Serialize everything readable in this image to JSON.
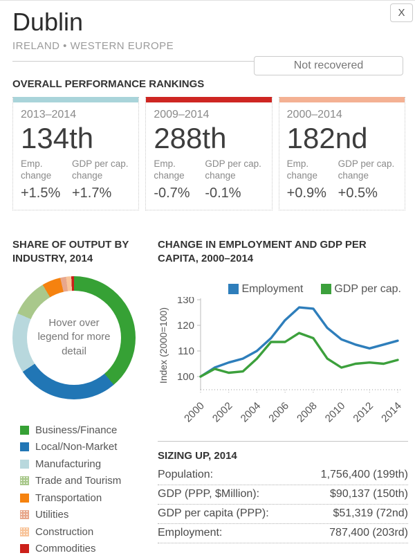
{
  "header": {
    "close_label": "X",
    "title": "Dublin",
    "subtitle": "IRELAND • WESTERN EUROPE",
    "status_label": "Not recovered"
  },
  "rankings": {
    "heading": "OVERALL PERFORMANCE RANKINGS",
    "col_labels": [
      "Emp. change",
      "GDP per cap. change"
    ],
    "cards": [
      {
        "period": "2013–2014",
        "rank": "134th",
        "bar_color": "#a9d4da",
        "emp_value": "+1.5%",
        "gdp_value": "+1.7%"
      },
      {
        "period": "2009–2014",
        "rank": "288th",
        "bar_color": "#ce2622",
        "emp_value": "-0.7%",
        "gdp_value": "-0.1%"
      },
      {
        "period": "2000–2014",
        "rank": "182nd",
        "bar_color": "#f4b193",
        "emp_value": "+0.9%",
        "gdp_value": "+0.5%"
      }
    ]
  },
  "chart_data": [
    {
      "type": "pie",
      "title": "SHARE OF OUTPUT BY INDUSTRY, 2014",
      "donut": true,
      "center_note": "Hover over legend for more detail",
      "legend_position": "bottom-left",
      "slices": [
        {
          "label": "Business/Finance",
          "value": 38.8,
          "color": "#36a135",
          "patterned": false
        },
        {
          "label": "Local/Non-Market",
          "value": 26.9,
          "color": "#2176b5",
          "patterned": false
        },
        {
          "label": "Manufacturing",
          "value": 15.8,
          "color": "#b8d8dd",
          "patterned": false
        },
        {
          "label": "Trade and Tourism",
          "value": 10.0,
          "color": "#a9c88b",
          "patterned": true
        },
        {
          "label": "Transportation",
          "value": 4.9,
          "color": "#f5820f",
          "patterned": false
        },
        {
          "label": "Utilities",
          "value": 1.5,
          "color": "#e8a78c",
          "patterned": true
        },
        {
          "label": "Construction",
          "value": 1.4,
          "color": "#f8c49a",
          "patterned": true
        },
        {
          "label": "Commodities",
          "value": 0.7,
          "color": "#cc2019",
          "patterned": false
        }
      ]
    },
    {
      "type": "line",
      "title": "CHANGE IN EMPLOYMENT AND GDP PER CAPITA, 2000–2014",
      "ylabel": "Index (2000=100)",
      "x": [
        2000,
        2001,
        2002,
        2003,
        2004,
        2005,
        2006,
        2007,
        2008,
        2009,
        2010,
        2011,
        2012,
        2013,
        2014
      ],
      "xticks": [
        2000,
        2002,
        2004,
        2006,
        2008,
        2010,
        2012,
        2014
      ],
      "yticks": [
        100,
        110,
        120,
        130
      ],
      "ylim": [
        95,
        132
      ],
      "legend_position": "top-right",
      "grid": false,
      "series": [
        {
          "name": "Employment",
          "color": "#2e7ebb",
          "values": [
            100,
            103.5,
            105.5,
            107,
            110,
            115,
            122,
            127,
            126.5,
            119,
            114.5,
            112.5,
            111,
            112.5,
            114
          ]
        },
        {
          "name": "GDP per cap.",
          "color": "#3ca03c",
          "values": [
            100,
            103,
            101.5,
            102,
            107,
            113.5,
            113.5,
            117,
            115,
            107,
            103.5,
            105,
            105.5,
            105,
            106.5
          ]
        }
      ]
    }
  ],
  "sizing": {
    "heading": "SIZING UP, 2014",
    "rows": [
      {
        "label": "Population:",
        "value": "1,756,400 (199th)"
      },
      {
        "label": "GDP (PPP, $Million):",
        "value": "$90,137 (150th)"
      },
      {
        "label": "GDP per capita (PPP):",
        "value": "$51,319 (72nd)"
      },
      {
        "label": "Employment:",
        "value": "787,400 (203rd)"
      }
    ]
  }
}
